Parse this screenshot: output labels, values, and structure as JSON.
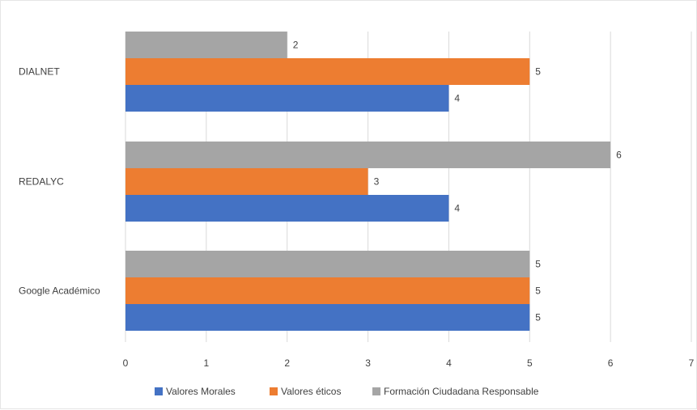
{
  "chart_data": {
    "type": "bar",
    "orientation": "horizontal",
    "categories": [
      "DIALNET",
      "REDALYC",
      "Google Académico"
    ],
    "series": [
      {
        "name": "Valores Morales",
        "color": "#4472c4",
        "values": [
          4,
          4,
          5
        ]
      },
      {
        "name": "Valores éticos",
        "color": "#ed7d31",
        "values": [
          5,
          3,
          5
        ]
      },
      {
        "name": "Formación Ciudadana Responsable",
        "color": "#a5a5a5",
        "values": [
          2,
          6,
          5
        ]
      }
    ],
    "xlim": [
      0,
      7
    ],
    "xticks": [
      "0",
      "1",
      "2",
      "3",
      "4",
      "5",
      "6",
      "7"
    ],
    "grid": true,
    "data_labels": true,
    "legend_position": "bottom",
    "title": "",
    "xlabel": "",
    "ylabel": ""
  }
}
